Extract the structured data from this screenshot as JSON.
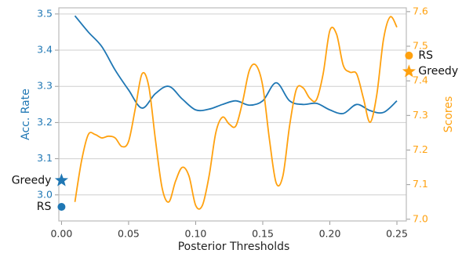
{
  "chart_data": {
    "type": "line",
    "x_label": "Posterior Thresholds",
    "y_label": "Acc. Rate",
    "y2_label": "Scores",
    "xlim": [
      -0.002,
      0.257
    ],
    "xticks": [
      {
        "value": 0,
        "label": "0.00"
      },
      {
        "value": 0.05,
        "label": "0.05"
      },
      {
        "value": 0.1,
        "label": "0.10"
      },
      {
        "value": 0.15,
        "label": "0.15"
      },
      {
        "value": 0.2,
        "label": "0.20"
      },
      {
        "value": 0.25,
        "label": "0.25"
      }
    ],
    "ylim": [
      2.928,
      3.517
    ],
    "yticks": [
      {
        "value": 3,
        "label": "3.0"
      },
      3.1,
      3.2,
      3.3,
      3.4,
      3.5
    ],
    "y2lim": [
      6.995,
      7.611
    ],
    "y2ticks": [
      {
        "value": 7,
        "label": "7.0"
      },
      7.1,
      7.2,
      7.3,
      7.4,
      7.5,
      7.6
    ],
    "grid": true,
    "series": [
      {
        "name": "Acc. Rate",
        "color": "#1f77b4",
        "axis": "y",
        "x": [
          0.01,
          0.02,
          0.03,
          0.04,
          0.05,
          0.06,
          0.07,
          0.08,
          0.09,
          0.1,
          0.11,
          0.12,
          0.13,
          0.14,
          0.15,
          0.16,
          0.17,
          0.18,
          0.19,
          0.2,
          0.21,
          0.22,
          0.23,
          0.24,
          0.25
        ],
        "values": [
          3.495,
          3.45,
          3.41,
          3.345,
          3.29,
          3.24,
          3.28,
          3.3,
          3.265,
          3.235,
          3.237,
          3.25,
          3.26,
          3.248,
          3.26,
          3.31,
          3.26,
          3.25,
          3.253,
          3.235,
          3.225,
          3.25,
          3.233,
          3.228,
          3.26
        ]
      },
      {
        "name": "Scores",
        "color": "#ffa10f",
        "axis": "y2",
        "x": [
          0.01,
          0.015,
          0.02,
          0.025,
          0.03,
          0.035,
          0.04,
          0.045,
          0.05,
          0.055,
          0.06,
          0.065,
          0.07,
          0.075,
          0.08,
          0.085,
          0.09,
          0.095,
          0.1,
          0.105,
          0.11,
          0.115,
          0.12,
          0.125,
          0.13,
          0.135,
          0.14,
          0.145,
          0.15,
          0.155,
          0.16,
          0.165,
          0.17,
          0.175,
          0.18,
          0.185,
          0.19,
          0.195,
          0.2,
          0.205,
          0.21,
          0.215,
          0.22,
          0.225,
          0.23,
          0.235,
          0.24,
          0.245,
          0.25
        ],
        "values": [
          7.05,
          7.17,
          7.245,
          7.245,
          7.235,
          7.24,
          7.235,
          7.21,
          7.225,
          7.32,
          7.42,
          7.385,
          7.23,
          7.09,
          7.05,
          7.11,
          7.15,
          7.125,
          7.04,
          7.04,
          7.125,
          7.25,
          7.295,
          7.275,
          7.27,
          7.34,
          7.43,
          7.445,
          7.385,
          7.23,
          7.105,
          7.125,
          7.27,
          7.375,
          7.38,
          7.35,
          7.345,
          7.42,
          7.545,
          7.535,
          7.445,
          7.425,
          7.42,
          7.35,
          7.28,
          7.36,
          7.52,
          7.585,
          7.555
        ]
      }
    ],
    "markers": [
      {
        "label": "Greedy",
        "axis": "y",
        "x": 0,
        "value": 3.04,
        "shape": "star",
        "color": "#1f77b4"
      },
      {
        "label": "RS",
        "axis": "y",
        "x": 0,
        "value": 2.967,
        "shape": "circle",
        "color": "#1f77b4"
      },
      {
        "label": "RS",
        "axis": "y2",
        "x": 0.259,
        "value": 7.473,
        "shape": "circle",
        "color": "#ffa10f"
      },
      {
        "label": "Greedy",
        "axis": "y2",
        "x": 0.259,
        "value": 7.427,
        "shape": "star",
        "color": "#ffa10f"
      }
    ]
  }
}
